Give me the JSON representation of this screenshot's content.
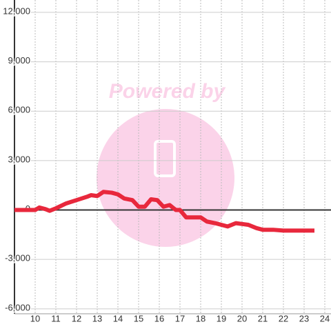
{
  "chart_data": {
    "type": "line",
    "watermark": "Powered by",
    "x": [
      9,
      9.5,
      10,
      10.2,
      10.5,
      10.7,
      11,
      11.5,
      12,
      12.5,
      12.7,
      13,
      13.3,
      13.7,
      14,
      14.3,
      14.7,
      15,
      15.3,
      15.6,
      15.9,
      16.2,
      16.5,
      16.8,
      17,
      17.3,
      17.7,
      18,
      18.3,
      18.7,
      19,
      19.3,
      19.7,
      20,
      20.3,
      20.7,
      21,
      21.5,
      22,
      22.5,
      23,
      23.5
    ],
    "series": [
      {
        "color": "#e8283c",
        "values": [
          0,
          0,
          0,
          150,
          50,
          -50,
          100,
          400,
          600,
          800,
          900,
          850,
          1100,
          1050,
          950,
          700,
          600,
          200,
          200,
          650,
          600,
          200,
          300,
          0,
          0,
          -450,
          -450,
          -450,
          -700,
          -800,
          -900,
          -1000,
          -800,
          -850,
          -900,
          -1100,
          -1200,
          -1200,
          -1250,
          -1250,
          -1250,
          -1250
        ]
      }
    ],
    "xlim": [
      9,
      24.3
    ],
    "ylim": [
      -6300,
      12750
    ],
    "xticks": [
      10,
      11,
      12,
      13,
      14,
      15,
      16,
      17,
      18,
      19,
      20,
      21,
      22,
      23,
      24
    ],
    "yticks": [
      {
        "value": -6000,
        "label": "-6,000"
      },
      {
        "value": -3000,
        "label": "-3,000"
      },
      0,
      {
        "value": 3000,
        "label": "3,000"
      },
      {
        "value": 6000,
        "label": "6,000"
      },
      {
        "value": 9000,
        "label": "9,000"
      },
      {
        "value": 12000,
        "label": "12,000"
      }
    ],
    "grid": true
  }
}
